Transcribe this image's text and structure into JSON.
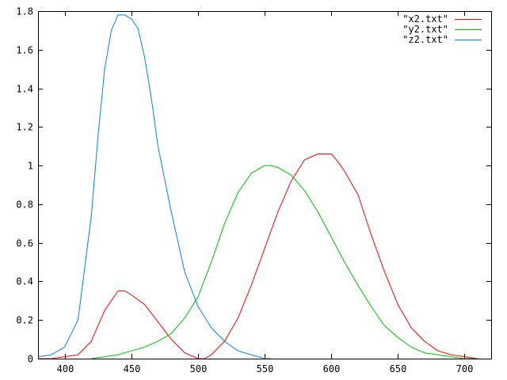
{
  "chart_data": {
    "type": "line",
    "title": "",
    "xlabel": "",
    "ylabel": "",
    "xlim": [
      380,
      720
    ],
    "ylim": [
      0,
      1.8
    ],
    "x_ticks": [
      400,
      450,
      500,
      550,
      600,
      650,
      700
    ],
    "x_tick_labels": [
      "400",
      "450",
      "500",
      "550",
      "600",
      "650",
      "700"
    ],
    "y_ticks": [
      0,
      0.2,
      0.4,
      0.6,
      0.8,
      1,
      1.2,
      1.4,
      1.6,
      1.8
    ],
    "y_tick_labels": [
      "0",
      "0.2",
      "0.4",
      "0.6",
      "0.8",
      "1",
      "1.2",
      "1.4",
      "1.6",
      "1.8"
    ],
    "grid": false,
    "legend_position": "top-right",
    "series": [
      {
        "name": "\"x2.txt\"",
        "color": "#ff0000",
        "x": [
          380,
          390,
          400,
          410,
          420,
          430,
          440,
          445,
          450,
          460,
          470,
          480,
          490,
          500,
          505,
          510,
          520,
          530,
          540,
          550,
          560,
          570,
          580,
          590,
          595,
          600,
          605,
          610,
          620,
          630,
          640,
          650,
          660,
          670,
          680,
          690,
          700,
          710
        ],
        "y": [
          0.0,
          0.0,
          0.01,
          0.02,
          0.09,
          0.25,
          0.35,
          0.35,
          0.33,
          0.28,
          0.19,
          0.1,
          0.03,
          0.0,
          0.0,
          0.02,
          0.09,
          0.21,
          0.38,
          0.57,
          0.76,
          0.92,
          1.03,
          1.06,
          1.06,
          1.06,
          1.02,
          0.97,
          0.85,
          0.64,
          0.45,
          0.28,
          0.16,
          0.09,
          0.04,
          0.02,
          0.01,
          0.0
        ]
      },
      {
        "name": "\"y2.txt\"",
        "color": "#00c000",
        "x": [
          420,
          430,
          440,
          450,
          460,
          470,
          480,
          490,
          500,
          510,
          520,
          530,
          540,
          550,
          555,
          560,
          570,
          580,
          590,
          600,
          610,
          620,
          630,
          640,
          650,
          660,
          670,
          680,
          690,
          700,
          710
        ],
        "y": [
          0.0,
          0.01,
          0.02,
          0.04,
          0.06,
          0.09,
          0.13,
          0.21,
          0.32,
          0.5,
          0.7,
          0.86,
          0.96,
          1.0,
          1.0,
          0.99,
          0.95,
          0.87,
          0.76,
          0.63,
          0.5,
          0.38,
          0.27,
          0.17,
          0.11,
          0.06,
          0.03,
          0.02,
          0.01,
          0.0,
          0.0
        ]
      },
      {
        "name": "\"z2.txt\"",
        "color": "#0080ff",
        "x": [
          380,
          390,
          400,
          410,
          420,
          425,
          430,
          435,
          440,
          445,
          450,
          455,
          460,
          465,
          470,
          480,
          490,
          500,
          510,
          520,
          530,
          540,
          550,
          555
        ],
        "y": [
          0.01,
          0.02,
          0.06,
          0.2,
          0.74,
          1.15,
          1.5,
          1.7,
          1.78,
          1.78,
          1.76,
          1.71,
          1.56,
          1.35,
          1.1,
          0.76,
          0.45,
          0.27,
          0.16,
          0.09,
          0.04,
          0.02,
          0.0,
          0.0
        ]
      }
    ]
  }
}
